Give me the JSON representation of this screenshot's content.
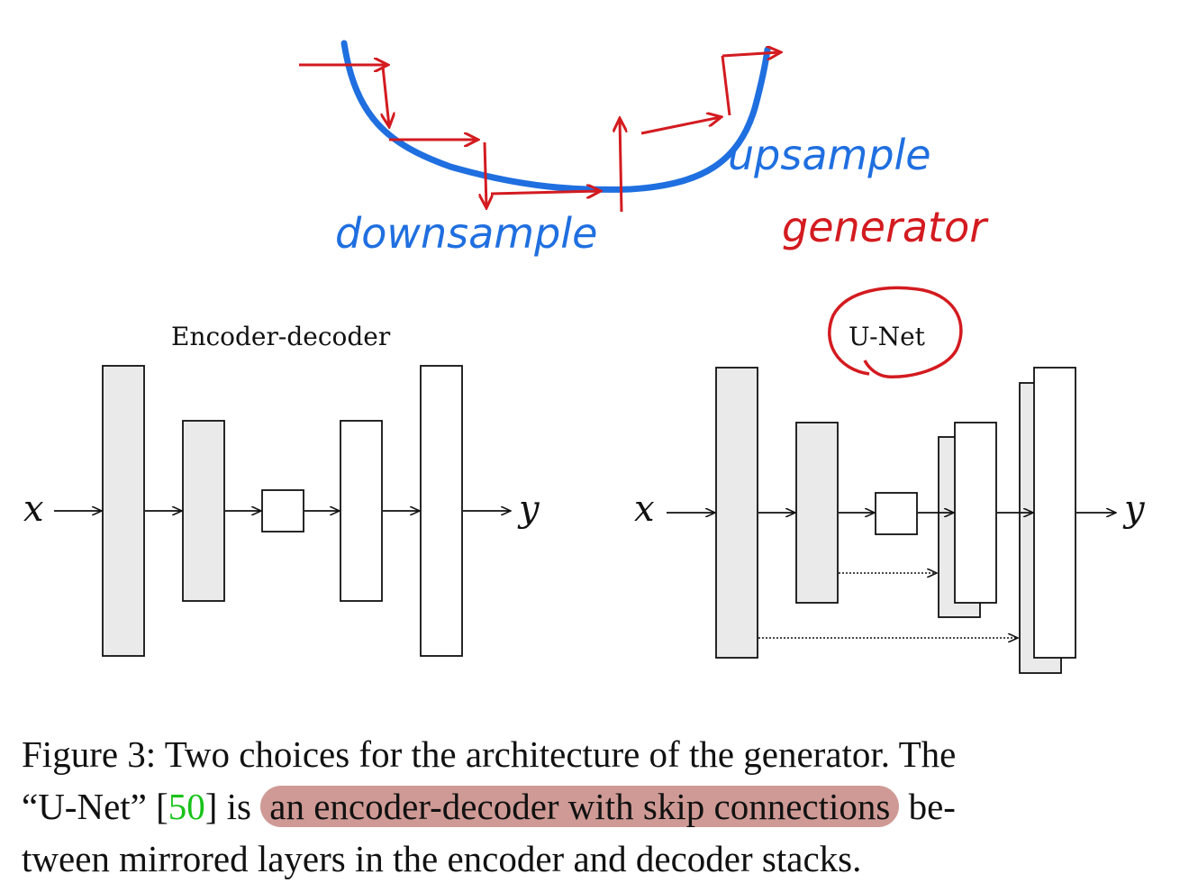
{
  "annotations": {
    "downsample": "downsample",
    "upsample": "upsample",
    "generator": "generator",
    "curve_color": "#1f6fe0",
    "arrow_color": "#d31b20"
  },
  "diagram": {
    "left_title": "Encoder-decoder",
    "right_title": "U-Net",
    "input_symbol": "x",
    "output_symbol": "y",
    "gray_fill": "#eaeaea"
  },
  "caption": {
    "line1_a": "Figure 3: Two choices for the architecture of the generator. The",
    "line2_a": "“U-Net” [",
    "line2_cite": "50",
    "line2_b": "] is ",
    "line2_highlight": "an encoder-decoder with skip connections",
    "line2_c": " be-",
    "line3": "tween mirrored layers in the encoder and decoder stacks.",
    "cite_color": "#19c219",
    "highlight_color": "#cf9a95"
  }
}
